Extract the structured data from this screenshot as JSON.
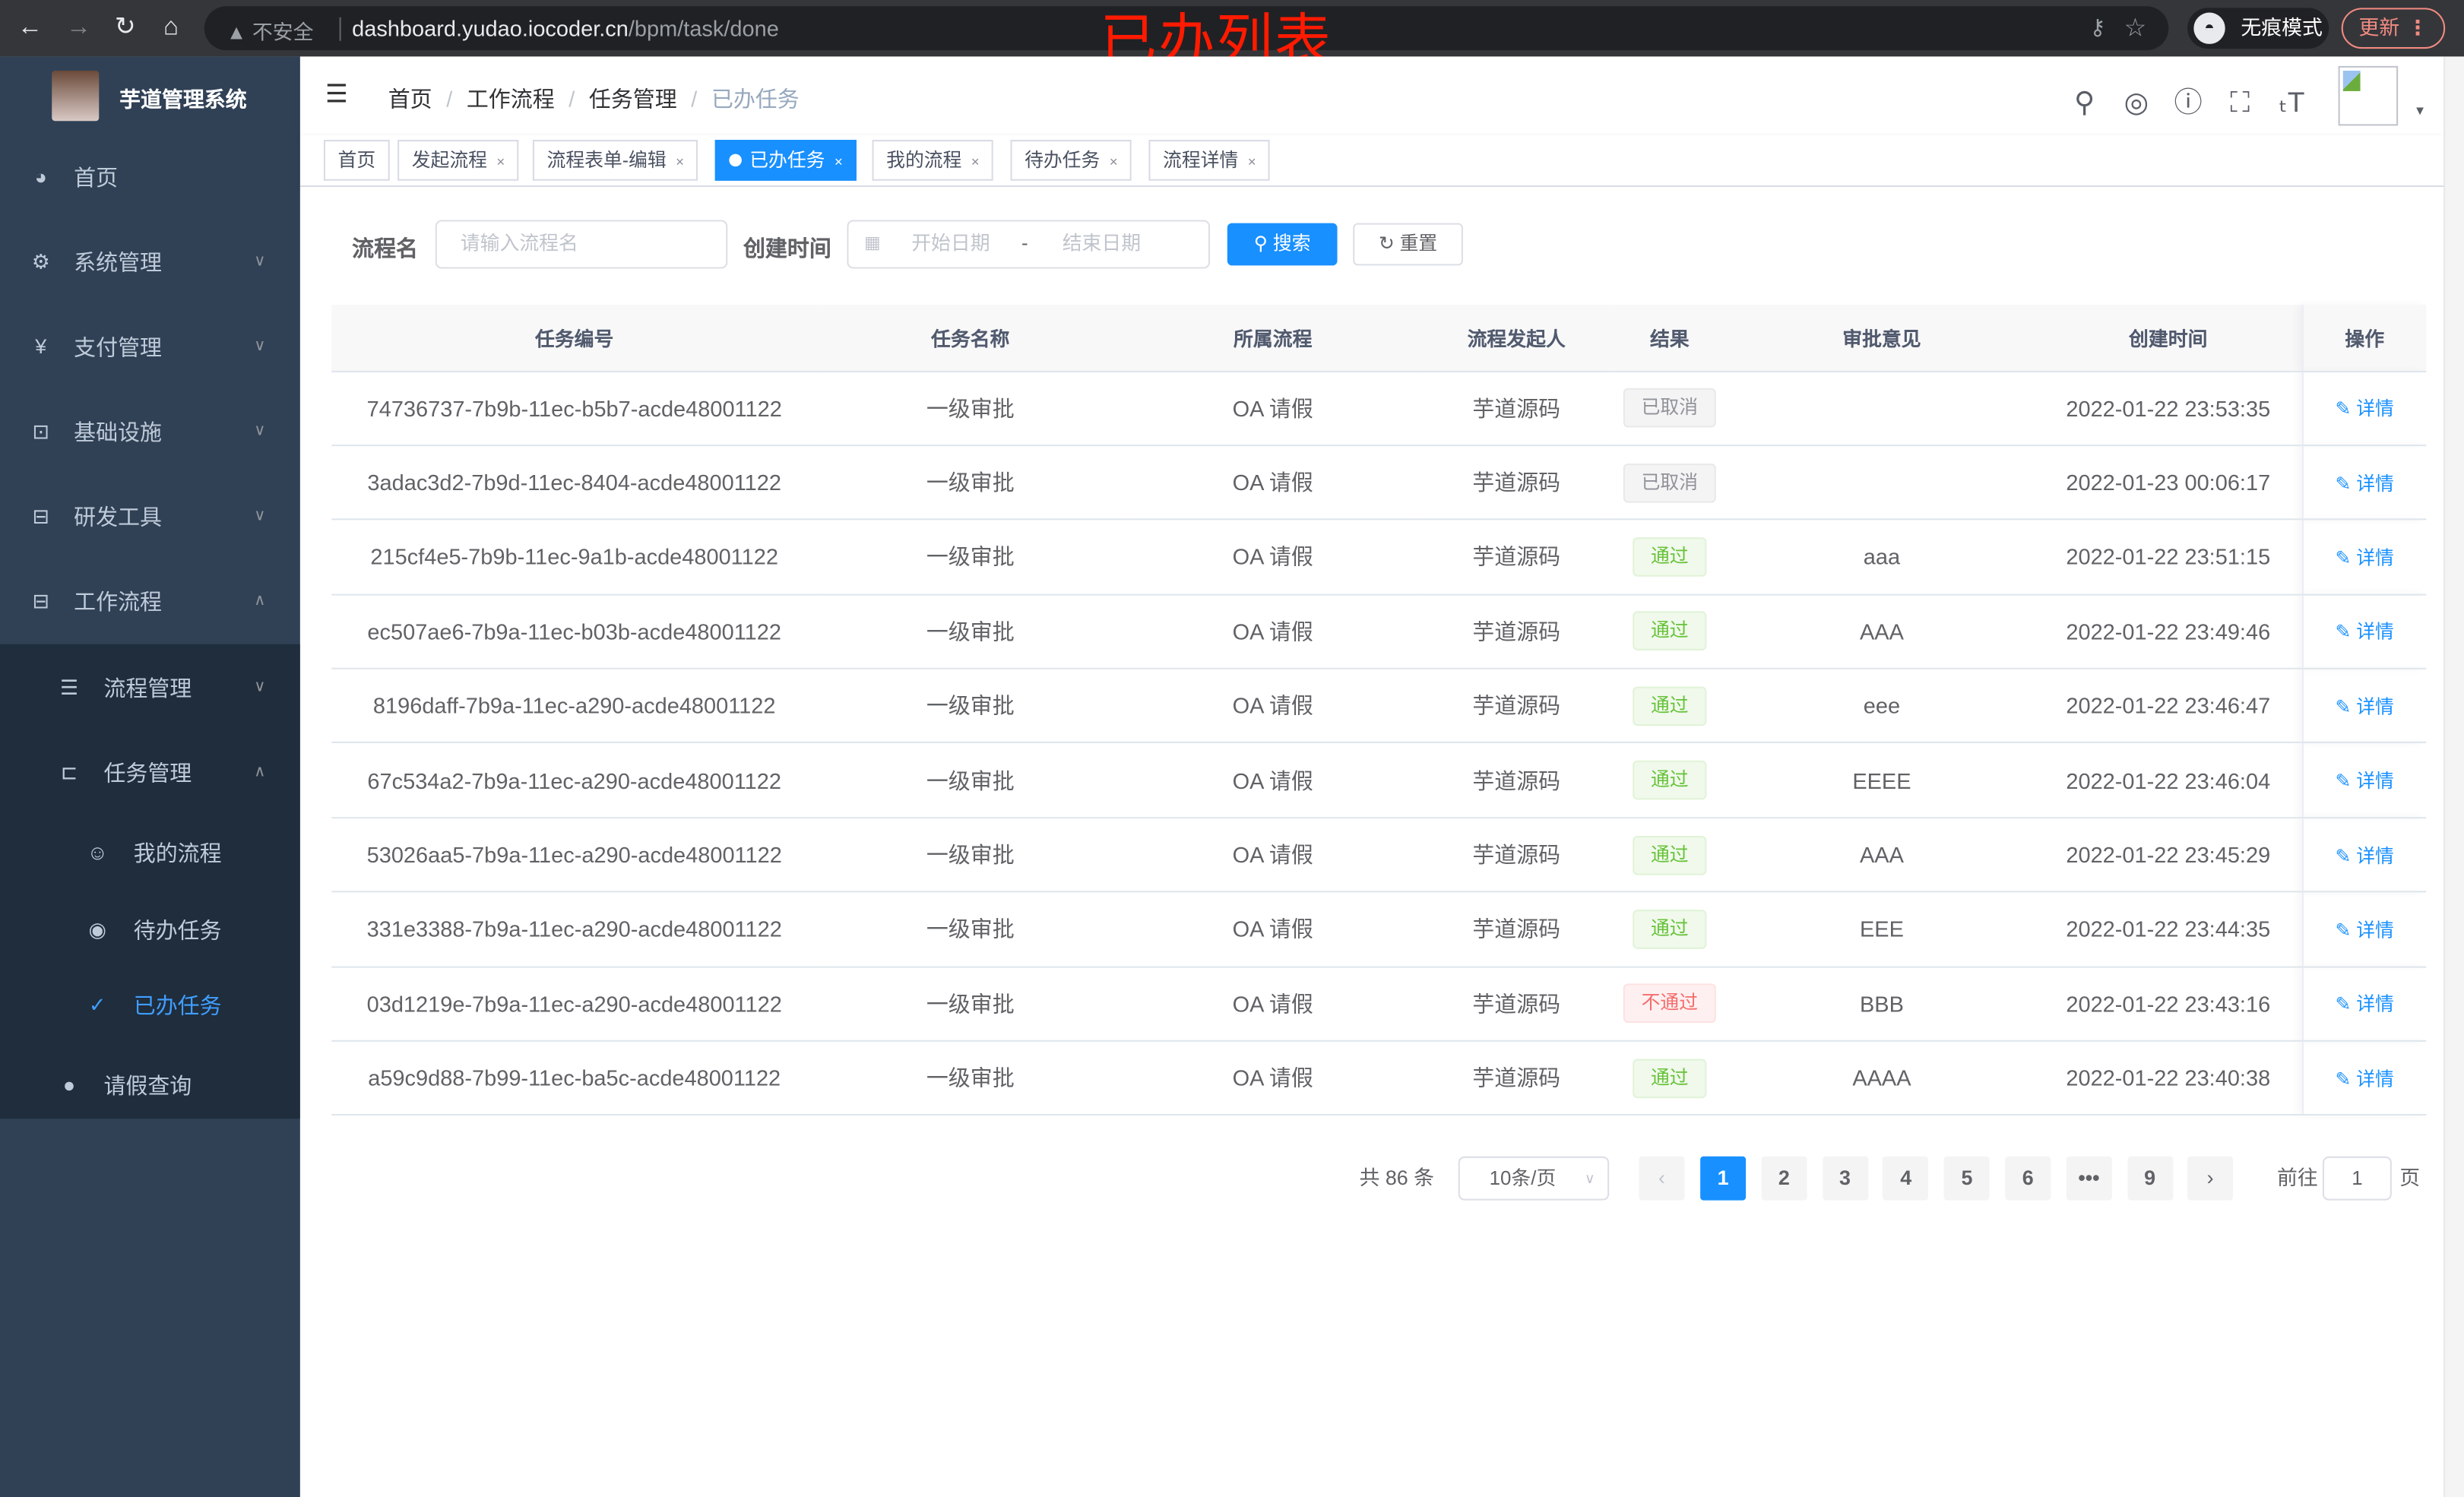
{
  "browser": {
    "security_label": "不安全",
    "url_host": "dashboard.yudao.iocoder.cn",
    "url_path": "/bpm/task/done",
    "incognito_label": "无痕模式",
    "update_label": "更新"
  },
  "overlay_title": "已办列表",
  "sidebar": {
    "app_name": "芋道管理系统",
    "items": [
      {
        "label": "首页",
        "icon": "dashboard-icon"
      },
      {
        "label": "系统管理",
        "icon": "gear-icon"
      },
      {
        "label": "支付管理",
        "icon": "yen-icon"
      },
      {
        "label": "基础设施",
        "icon": "monitor-icon"
      },
      {
        "label": "研发工具",
        "icon": "toolbox-icon"
      },
      {
        "label": "工作流程",
        "icon": "toolbox-icon"
      },
      {
        "label": "流程管理",
        "icon": "list-icon"
      },
      {
        "label": "任务管理",
        "icon": "tree-icon"
      },
      {
        "label": "我的流程",
        "icon": "people-icon"
      },
      {
        "label": "待办任务",
        "icon": "eye-icon"
      },
      {
        "label": "已办任务",
        "icon": "done-icon"
      },
      {
        "label": "请假查询",
        "icon": "user-icon"
      }
    ]
  },
  "breadcrumb": [
    "首页",
    "工作流程",
    "任务管理",
    "已办任务"
  ],
  "tags": [
    "首页",
    "发起流程",
    "流程表单-编辑",
    "已办任务",
    "我的流程",
    "待办任务",
    "流程详情"
  ],
  "search": {
    "name_label": "流程名",
    "name_placeholder": "请输入流程名",
    "time_label": "创建时间",
    "start_placeholder": "开始日期",
    "range_sep": "-",
    "end_placeholder": "结束日期",
    "search_label": "搜索",
    "reset_label": "重置"
  },
  "table": {
    "headers": [
      "任务编号",
      "任务名称",
      "所属流程",
      "流程发起人",
      "结果",
      "审批意见",
      "创建时间",
      "操作"
    ],
    "action_label": "详情",
    "rows": [
      {
        "id": "74736737-7b9b-11ec-b5b7-acde48001122",
        "name": "一级审批",
        "process": "OA 请假",
        "starter": "芋道源码",
        "result": "已取消",
        "result_type": "cancel",
        "comment": "",
        "time": "2022-01-22 23:53:35"
      },
      {
        "id": "3adac3d2-7b9d-11ec-8404-acde48001122",
        "name": "一级审批",
        "process": "OA 请假",
        "starter": "芋道源码",
        "result": "已取消",
        "result_type": "cancel",
        "comment": "",
        "time": "2022-01-23 00:06:17"
      },
      {
        "id": "215cf4e5-7b9b-11ec-9a1b-acde48001122",
        "name": "一级审批",
        "process": "OA 请假",
        "starter": "芋道源码",
        "result": "通过",
        "result_type": "pass",
        "comment": "aaa",
        "time": "2022-01-22 23:51:15"
      },
      {
        "id": "ec507ae6-7b9a-11ec-b03b-acde48001122",
        "name": "一级审批",
        "process": "OA 请假",
        "starter": "芋道源码",
        "result": "通过",
        "result_type": "pass",
        "comment": "AAA",
        "time": "2022-01-22 23:49:46"
      },
      {
        "id": "8196daff-7b9a-11ec-a290-acde48001122",
        "name": "一级审批",
        "process": "OA 请假",
        "starter": "芋道源码",
        "result": "通过",
        "result_type": "pass",
        "comment": "eee",
        "time": "2022-01-22 23:46:47"
      },
      {
        "id": "67c534a2-7b9a-11ec-a290-acde48001122",
        "name": "一级审批",
        "process": "OA 请假",
        "starter": "芋道源码",
        "result": "通过",
        "result_type": "pass",
        "comment": "EEEE",
        "time": "2022-01-22 23:46:04"
      },
      {
        "id": "53026aa5-7b9a-11ec-a290-acde48001122",
        "name": "一级审批",
        "process": "OA 请假",
        "starter": "芋道源码",
        "result": "通过",
        "result_type": "pass",
        "comment": "AAA",
        "time": "2022-01-22 23:45:29"
      },
      {
        "id": "331e3388-7b9a-11ec-a290-acde48001122",
        "name": "一级审批",
        "process": "OA 请假",
        "starter": "芋道源码",
        "result": "通过",
        "result_type": "pass",
        "comment": "EEE",
        "time": "2022-01-22 23:44:35"
      },
      {
        "id": "03d1219e-7b9a-11ec-a290-acde48001122",
        "name": "一级审批",
        "process": "OA 请假",
        "starter": "芋道源码",
        "result": "不通过",
        "result_type": "reject",
        "comment": "BBB",
        "time": "2022-01-22 23:43:16"
      },
      {
        "id": "a59c9d88-7b99-11ec-ba5c-acde48001122",
        "name": "一级审批",
        "process": "OA 请假",
        "starter": "芋道源码",
        "result": "通过",
        "result_type": "pass",
        "comment": "AAAA",
        "time": "2022-01-22 23:40:38"
      }
    ]
  },
  "pagination": {
    "total_text": "共 86 条",
    "page_size": "10条/页",
    "pages": [
      "1",
      "2",
      "3",
      "4",
      "5",
      "6",
      "•••",
      "9"
    ],
    "current": "1",
    "goto_label": "前往",
    "goto_value": "1",
    "goto_suffix": "页"
  },
  "colors": {
    "primary": "#1890ff",
    "sidebar": "#304156",
    "active_menu": "#409eff",
    "overlay": "#ff1a00"
  }
}
